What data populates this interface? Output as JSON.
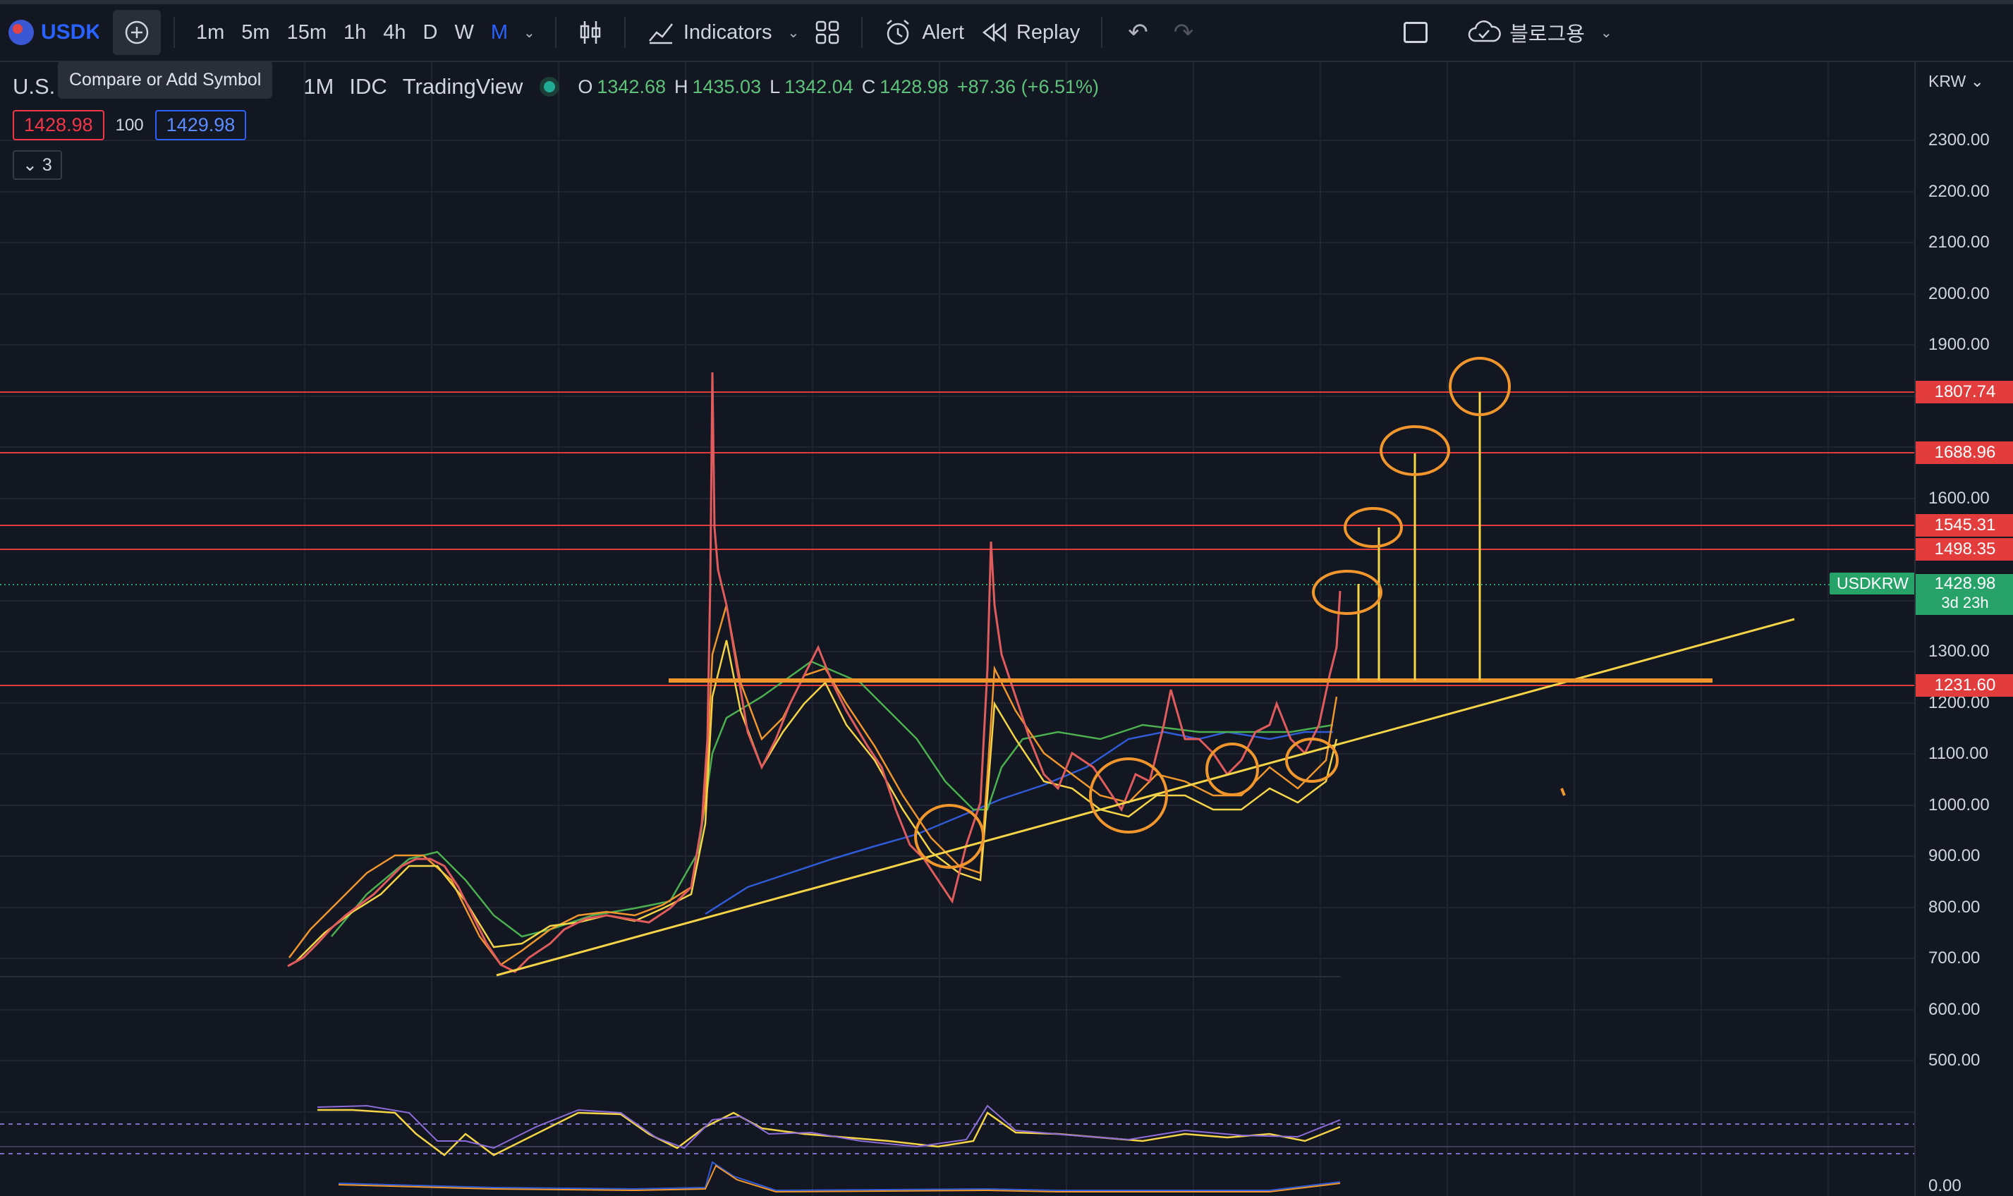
{
  "toolbar": {
    "symbol": "USDKRW",
    "intervals": [
      "1m",
      "5m",
      "15m",
      "1h",
      "4h",
      "D",
      "W",
      "M"
    ],
    "active_interval": "M",
    "indicators_label": "Indicators",
    "alert_label": "Alert",
    "replay_label": "Replay",
    "account_label": "블로그용"
  },
  "tooltip": "Compare or Add Symbol",
  "legend": {
    "symbol_title": "U.S.",
    "interval": "1M",
    "source": "IDC",
    "platform": "TradingView",
    "ohlc": {
      "o_label": "O",
      "o": "1342.68",
      "h_label": "H",
      "h": "1435.03",
      "l_label": "L",
      "l": "1342.04",
      "c_label": "C",
      "c": "1428.98",
      "change": "+87.36 (+6.51%)"
    },
    "bid": "1428.98",
    "spread": "100",
    "ask": "1429.98",
    "indicators_count": "3"
  },
  "price_scale": {
    "currency": "KRW",
    "ticks": [
      "2300.00",
      "2200.00",
      "2100.00",
      "2000.00",
      "1900.00",
      "1600.00",
      "1300.00",
      "1200.00",
      "1100.00",
      "1000.00",
      "900.00",
      "800.00",
      "700.00",
      "600.00",
      "500.00",
      "0.00"
    ],
    "level_labels": [
      "1807.74",
      "1688.96",
      "1545.31",
      "1498.35",
      "1231.60"
    ],
    "current_price": "1428.98",
    "countdown": "3d 23h",
    "symbol_tag": "USDKRW"
  },
  "colors": {
    "background": "#131722",
    "level_line": "#e23c3c",
    "trend_line": "#f5d547",
    "circle": "#f0962d",
    "price_label_bg": "#27a36a"
  }
}
